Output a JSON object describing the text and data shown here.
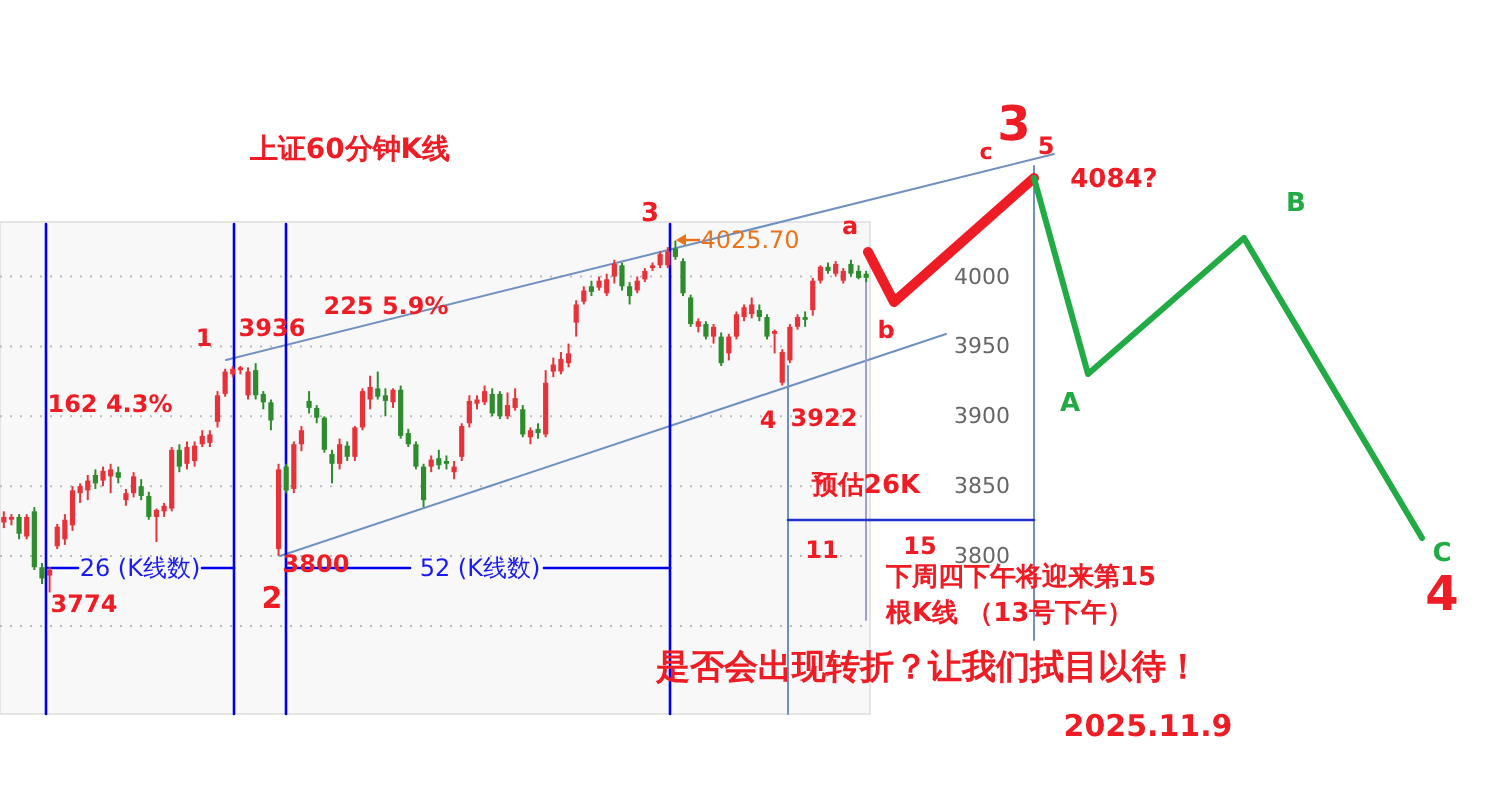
{
  "chart_data": {
    "type": "candlestick",
    "title": "上证60分钟K线",
    "ylim": [
      3687,
      4039
    ],
    "yticks": [
      {
        "value": 3750,
        "label": null
      },
      3800,
      3850,
      3900,
      3950,
      4000
    ],
    "tick_labels": "y",
    "grid": "y",
    "categories": [
      null,
      null,
      null,
      null,
      null,
      null,
      null,
      null,
      null,
      null,
      null,
      null,
      null,
      null,
      null,
      null,
      null,
      null,
      null,
      null,
      null,
      null,
      null,
      null,
      null,
      null,
      null,
      null,
      null,
      null,
      null,
      null,
      null,
      null,
      null,
      null,
      null,
      null,
      null,
      null,
      null,
      null,
      null,
      null,
      null,
      null,
      null,
      null,
      null,
      null,
      null,
      null,
      null,
      null,
      null,
      null,
      null,
      null,
      null,
      null,
      null,
      null,
      null,
      null,
      null,
      null,
      null,
      null,
      null,
      null,
      null,
      null,
      null,
      null,
      null,
      null,
      null,
      null,
      null,
      null,
      null,
      null,
      null,
      null,
      null,
      null,
      null,
      null,
      null,
      null,
      null,
      null,
      null,
      null,
      null,
      null,
      null,
      null,
      null,
      null,
      null,
      null,
      null,
      null,
      null,
      null,
      null,
      null,
      null,
      null,
      null,
      null,
      null,
      null
    ],
    "ohlc": [
      [
        3824,
        3832,
        3820,
        3828
      ],
      [
        3826,
        3830,
        3822,
        3828
      ],
      [
        3828,
        3830,
        3812,
        3816
      ],
      [
        3814,
        3830,
        3812,
        3828
      ],
      [
        3832,
        3835,
        3790,
        3792
      ],
      [
        3792,
        3795,
        3780,
        3784
      ],
      [
        3786,
        3792,
        3774,
        3790
      ],
      [
        3807,
        3823,
        3805,
        3821
      ],
      [
        3812,
        3830,
        3808,
        3826
      ],
      [
        3822,
        3850,
        3818,
        3847
      ],
      [
        3845,
        3852,
        3838,
        3850
      ],
      [
        3847,
        3858,
        3840,
        3854
      ],
      [
        3858,
        3862,
        3848,
        3852
      ],
      [
        3854,
        3864,
        3850,
        3861
      ],
      [
        3857,
        3866,
        3845,
        3862
      ],
      [
        3860,
        3864,
        3852,
        3856
      ],
      [
        3840,
        3848,
        3836,
        3845
      ],
      [
        3845,
        3860,
        3842,
        3857
      ],
      [
        3850,
        3855,
        3840,
        3843
      ],
      [
        3843,
        3846,
        3826,
        3828
      ],
      [
        3828,
        3834,
        3810,
        3833
      ],
      [
        3832,
        3838,
        3828,
        3836
      ],
      [
        3834,
        3878,
        3832,
        3876
      ],
      [
        3876,
        3880,
        3860,
        3864
      ],
      [
        3866,
        3882,
        3862,
        3878
      ],
      [
        3868,
        3882,
        3864,
        3879
      ],
      [
        3880,
        3890,
        3878,
        3886
      ],
      [
        3881,
        3890,
        3878,
        3887
      ],
      [
        3896,
        3918,
        3892,
        3915
      ],
      [
        3916,
        3934,
        3914,
        3932
      ],
      [
        3930,
        3936,
        3928,
        3934
      ],
      [
        3933,
        3936,
        3930,
        3935
      ],
      [
        3915,
        3935,
        3912,
        3932
      ],
      [
        3933,
        3938,
        3912,
        3915
      ],
      [
        3916,
        3918,
        3905,
        3910
      ],
      [
        3910,
        3912,
        3890,
        3897
      ],
      [
        3805,
        3866,
        3800,
        3862
      ],
      [
        3864,
        3866,
        3845,
        3847
      ],
      [
        3848,
        3882,
        3845,
        3880
      ],
      [
        3880,
        3893,
        3875,
        3890
      ],
      [
        3911,
        3918,
        3902,
        3906
      ],
      [
        3906,
        3908,
        3895,
        3899
      ],
      [
        3899,
        3900,
        3874,
        3876
      ],
      [
        3873,
        3876,
        3852,
        3866
      ],
      [
        3866,
        3884,
        3862,
        3880
      ],
      [
        3879,
        3882,
        3868,
        3871
      ],
      [
        3871,
        3893,
        3868,
        3892
      ],
      [
        3892,
        3920,
        3890,
        3918
      ],
      [
        3912,
        3929,
        3905,
        3921
      ],
      [
        3920,
        3932,
        3912,
        3914
      ],
      [
        3915,
        3920,
        3900,
        3911
      ],
      [
        3910,
        3920,
        3906,
        3919
      ],
      [
        3919,
        3922,
        3884,
        3886
      ],
      [
        3888,
        3891,
        3878,
        3880
      ],
      [
        3880,
        3882,
        3862,
        3864
      ],
      [
        3864,
        3866,
        3835,
        3840
      ],
      [
        3864,
        3872,
        3860,
        3869
      ],
      [
        3870,
        3876,
        3862,
        3865
      ],
      [
        3868,
        3872,
        3862,
        3866
      ],
      [
        3860,
        3868,
        3855,
        3864
      ],
      [
        3871,
        3895,
        3868,
        3893
      ],
      [
        3895,
        3915,
        3892,
        3911
      ],
      [
        3909,
        3915,
        3905,
        3912
      ],
      [
        3910,
        3922,
        3908,
        3918
      ],
      [
        3916,
        3920,
        3900,
        3902
      ],
      [
        3916,
        3918,
        3898,
        3900
      ],
      [
        3900,
        3917,
        3898,
        3908
      ],
      [
        3906,
        3920,
        3904,
        3913
      ],
      [
        3905,
        3908,
        3885,
        3887
      ],
      [
        3885,
        3892,
        3880,
        3890
      ],
      [
        3891,
        3895,
        3884,
        3888
      ],
      [
        3887,
        3933,
        3885,
        3924
      ],
      [
        3932,
        3942,
        3928,
        3937
      ],
      [
        3932,
        3946,
        3930,
        3941
      ],
      [
        3938,
        3952,
        3935,
        3945
      ],
      [
        3967,
        3983,
        3957,
        3980
      ],
      [
        3982,
        3993,
        3980,
        3990
      ],
      [
        3993,
        3997,
        3986,
        3989
      ],
      [
        3992,
        4000,
        3990,
        3997
      ],
      [
        3988,
        4002,
        3986,
        3998
      ],
      [
        4000,
        4012,
        3995,
        4009
      ],
      [
        4008,
        4010,
        3990,
        3993
      ],
      [
        3993,
        3996,
        3980,
        3986
      ],
      [
        3990,
        4000,
        3988,
        3997
      ],
      [
        3998,
        4006,
        3996,
        4004
      ],
      [
        4006,
        4010,
        4004,
        4008
      ],
      [
        4008,
        4018,
        4006,
        4016
      ],
      [
        4008,
        4021,
        4006,
        4018
      ],
      [
        4020,
        4025.7,
        4012,
        4014
      ],
      [
        4011,
        4013,
        3986,
        3988
      ],
      [
        3985,
        3987,
        3964,
        3966
      ],
      [
        3964,
        3970,
        3960,
        3968
      ],
      [
        3966,
        3968,
        3955,
        3957
      ],
      [
        3957,
        3966,
        3952,
        3964
      ],
      [
        3957,
        3960,
        3936,
        3938
      ],
      [
        3945,
        3959,
        3940,
        3957
      ],
      [
        3957,
        3975,
        3955,
        3973
      ],
      [
        3971,
        3980,
        3968,
        3978
      ],
      [
        3973,
        3985,
        3970,
        3980
      ],
      [
        3976,
        3980,
        3968,
        3971
      ],
      [
        3971,
        3973,
        3955,
        3957
      ],
      [
        3959,
        3962,
        3945,
        3961
      ],
      [
        3924,
        3948,
        3922,
        3946
      ],
      [
        3940,
        3966,
        3938,
        3964
      ],
      [
        3964,
        3973,
        3962,
        3971
      ],
      [
        3971,
        3975,
        3964,
        3969
      ],
      [
        3976,
        3999,
        3972,
        3997
      ],
      [
        3997,
        4008,
        3995,
        4007
      ],
      [
        4007,
        4010,
        4002,
        4004
      ],
      [
        4002,
        4011,
        4000,
        4009
      ],
      [
        3997,
        4006,
        3995,
        4004
      ],
      [
        4009,
        4012,
        4000,
        4002
      ],
      [
        4004,
        4008,
        3998,
        3999
      ],
      [
        4002,
        4004,
        3996,
        3999
      ]
    ],
    "annotations": [
      "1",
      "3936",
      "3774",
      "2",
      "3800",
      "3",
      "4025.70",
      "a",
      "b",
      "4",
      "3922",
      "c",
      "3",
      "5",
      "4084?",
      "A",
      "B",
      "C",
      "4",
      "162 4.3%",
      "225 5.9%",
      "26 (K线数)",
      "52 (K线数)",
      "预估26K",
      "11",
      "15",
      "下周四下午将迎来第15",
      "根K线 （13号下午）",
      "是否会出现转折？让我们拭目以待！",
      "2025.11.9"
    ]
  }
}
